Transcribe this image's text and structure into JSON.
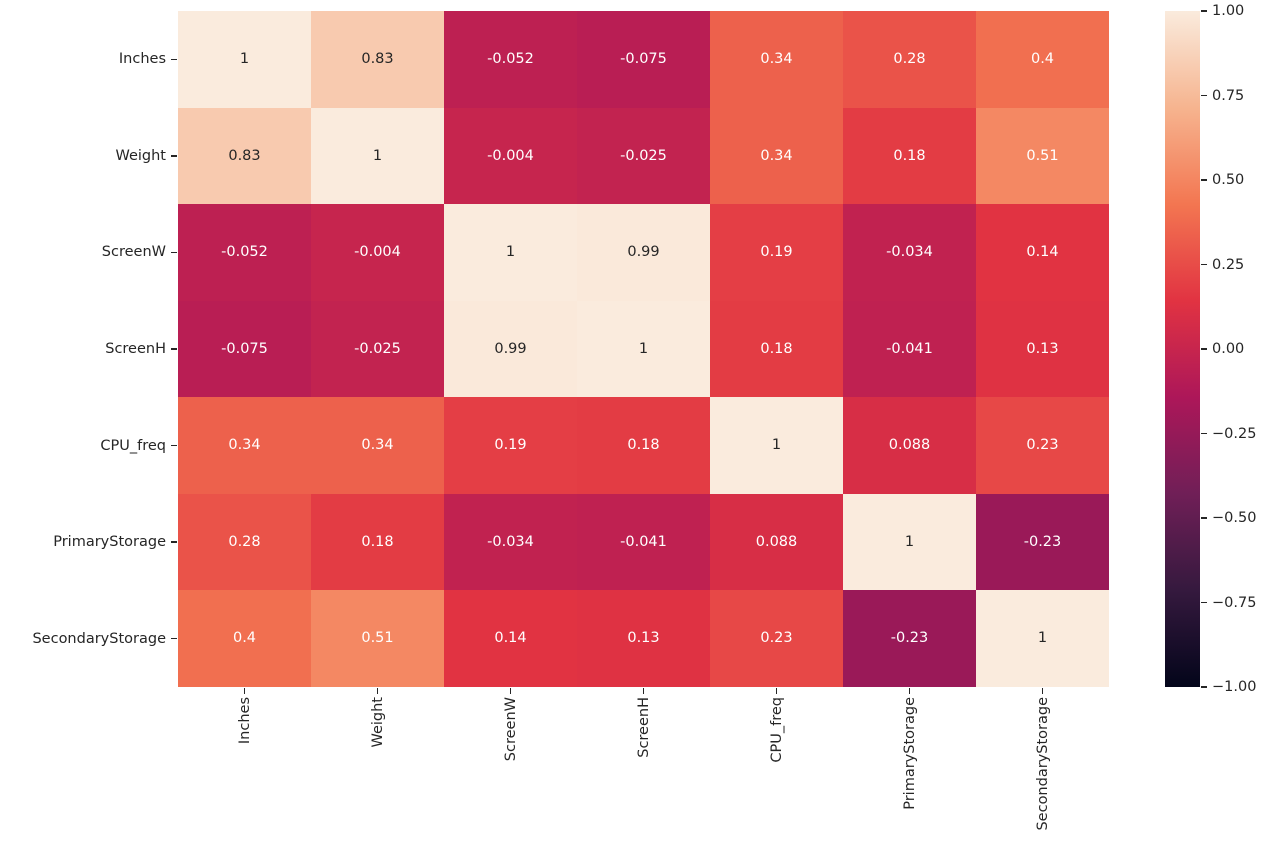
{
  "chart_data": {
    "type": "heatmap",
    "title": "",
    "description": "Correlation matrix heatmap of laptop specification features",
    "categories": [
      "Inches",
      "Weight",
      "ScreenW",
      "ScreenH",
      "CPU_freq",
      "PrimaryStorage",
      "SecondaryStorage"
    ],
    "matrix": [
      [
        1,
        0.83,
        -0.052,
        -0.075,
        0.34,
        0.28,
        0.4
      ],
      [
        0.83,
        1,
        -0.004,
        -0.025,
        0.34,
        0.18,
        0.51
      ],
      [
        -0.052,
        -0.004,
        1,
        0.99,
        0.19,
        -0.034,
        0.14
      ],
      [
        -0.075,
        -0.025,
        0.99,
        1,
        0.18,
        -0.041,
        0.13
      ],
      [
        0.34,
        0.34,
        0.19,
        0.18,
        1,
        0.088,
        0.23
      ],
      [
        0.28,
        0.18,
        -0.034,
        -0.041,
        0.088,
        1,
        -0.23
      ],
      [
        0.4,
        0.51,
        0.14,
        0.13,
        0.23,
        -0.23,
        1
      ]
    ],
    "vmin": -1,
    "vmax": 1,
    "annotation_sig_figs": 2,
    "grid": false,
    "legend_position": "right-colorbar",
    "colorbar": {
      "ticks": [
        {
          "label": "1.00",
          "value": 1.0
        },
        {
          "label": "0.75",
          "value": 0.75
        },
        {
          "label": "0.50",
          "value": 0.5
        },
        {
          "label": "0.25",
          "value": 0.25
        },
        {
          "label": "0.00",
          "value": 0.0
        },
        {
          "label": "−0.25",
          "value": -0.25
        },
        {
          "label": "−0.50",
          "value": -0.5
        },
        {
          "label": "−0.75",
          "value": -0.75
        },
        {
          "label": "−1.00",
          "value": -1.0
        }
      ]
    },
    "colormap": {
      "name": "rocket",
      "stops": [
        {
          "t": 0.0,
          "color": "#03051a"
        },
        {
          "t": 0.143,
          "color": "#35193e"
        },
        {
          "t": 0.286,
          "color": "#701f57"
        },
        {
          "t": 0.429,
          "color": "#ad1759"
        },
        {
          "t": 0.571,
          "color": "#e13342"
        },
        {
          "t": 0.714,
          "color": "#f37651"
        },
        {
          "t": 0.857,
          "color": "#f6b48f"
        },
        {
          "t": 1.0,
          "color": "#faebdd"
        }
      ]
    },
    "colors": {
      "background": "#ffffff",
      "annotation_dark": "#262626",
      "annotation_light": "#ffffff",
      "tick": "#262626"
    }
  }
}
